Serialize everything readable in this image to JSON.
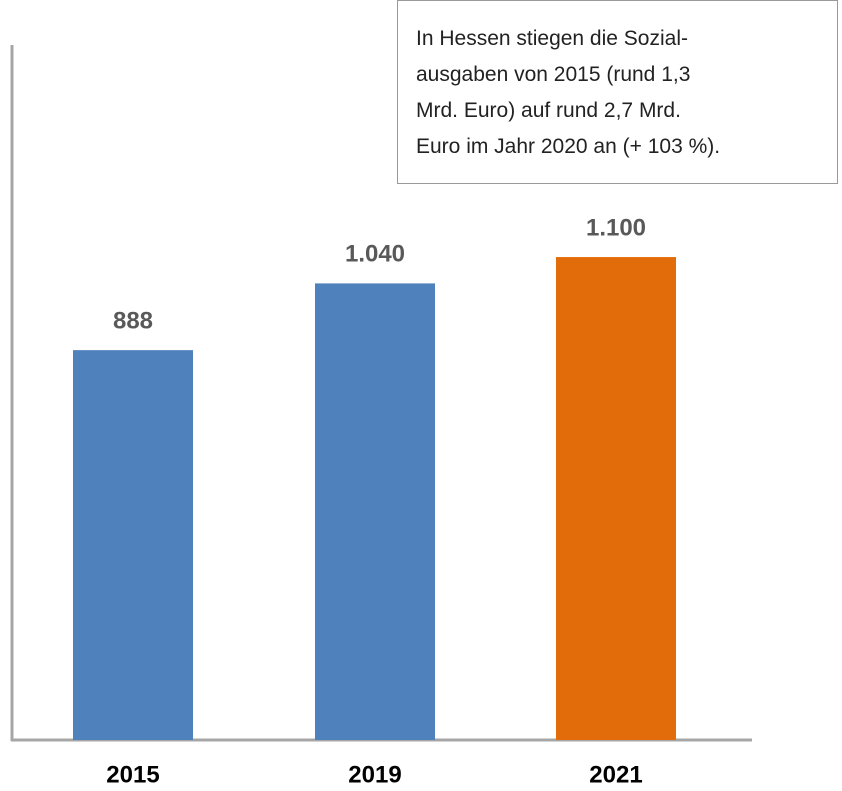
{
  "chart_data": {
    "type": "bar",
    "categories": [
      "2015",
      "2019",
      "2021"
    ],
    "values": [
      888,
      1040,
      1100
    ],
    "value_labels": [
      "888",
      "1.040",
      "1.100"
    ],
    "colors": [
      "#4f81bd",
      "#4f81bd",
      "#e36c0a"
    ],
    "ylim": [
      0,
      1583
    ],
    "annotation": [
      "In Hessen stiegen die Sozial-",
      "ausgaben von 2015 (rund 1,3",
      "Mrd. Euro) auf rund 2,7 Mrd.",
      "Euro im Jahr 2020 an (+ 103 %)."
    ]
  }
}
